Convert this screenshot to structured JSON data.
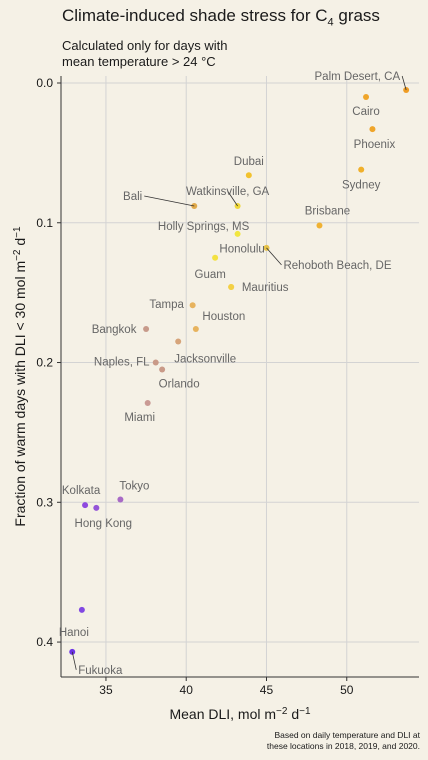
{
  "chart_data": {
    "type": "scatter",
    "title": "Climate-induced shade stress for C",
    "title_subscript": "4",
    "title_suffix": " grass",
    "subtitle_lines": [
      "Calculated only for days with",
      "mean temperature > 24 °C"
    ],
    "xlabel": "Mean DLI, mol m",
    "xlabel_sup1": "−2",
    "xlabel_mid": " d",
    "xlabel_sup2": "−1",
    "ylabel": "Fraction of warm days with DLI < 30 mol m",
    "ylabel_sup1": "−2",
    "ylabel_mid": " d",
    "ylabel_sup2": "−1",
    "caption_lines": [
      "Based on daily temperature and DLI at",
      "these locations in 2018, 2019, and 2020."
    ],
    "xlim": [
      32.2,
      54.5
    ],
    "ylim_reversed": [
      -0.005,
      0.425
    ],
    "x_ticks": [
      35,
      40,
      45,
      50
    ],
    "y_ticks": [
      0.0,
      0.1,
      0.2,
      0.3,
      0.4
    ],
    "y_tick_labels": [
      "0.0",
      "0.1",
      "0.2",
      "0.3",
      "0.4"
    ],
    "x_tick_labels": [
      "35",
      "40",
      "45",
      "50"
    ],
    "grid": true,
    "points": [
      {
        "name": "Palm Desert, CA",
        "x": 53.7,
        "y": 0.005,
        "color": "#ef9d25",
        "label_anchor": "end",
        "label_dx": -6,
        "label_dy": -10,
        "leader": true
      },
      {
        "name": "Cairo",
        "x": 51.2,
        "y": 0.01,
        "color": "#efa52a",
        "label_anchor": "middle",
        "label_dx": 0,
        "label_dy": 18,
        "leader": false
      },
      {
        "name": "Phoenix",
        "x": 51.6,
        "y": 0.033,
        "color": "#efa52a",
        "label_anchor": "middle",
        "label_dx": 2,
        "label_dy": 19,
        "leader": false
      },
      {
        "name": "Dubai",
        "x": 43.9,
        "y": 0.066,
        "color": "#f2c22e",
        "label_anchor": "middle",
        "label_dx": 0,
        "label_dy": -10,
        "leader": false
      },
      {
        "name": "Sydney",
        "x": 50.9,
        "y": 0.062,
        "color": "#f0b02b",
        "label_anchor": "middle",
        "label_dx": 0,
        "label_dy": 19,
        "leader": false
      },
      {
        "name": "Watkinsville, GA",
        "x": 43.2,
        "y": 0.088,
        "color": "#f0d83a",
        "label_anchor": "middle",
        "label_dx": -10,
        "label_dy": -11,
        "leader": true
      },
      {
        "name": "Bali",
        "x": 40.5,
        "y": 0.088,
        "color": "#e0a94a",
        "label_anchor": "end",
        "label_dx": -52,
        "label_dy": -6,
        "leader": true
      },
      {
        "name": "Holly Springs, MS",
        "x": 43.2,
        "y": 0.108,
        "color": "#f1e640",
        "label_anchor": "middle",
        "label_dx": -34,
        "label_dy": -4,
        "leader": false
      },
      {
        "name": "Brisbane",
        "x": 48.3,
        "y": 0.102,
        "color": "#f0b233",
        "label_anchor": "middle",
        "label_dx": 8,
        "label_dy": -11,
        "leader": false
      },
      {
        "name": "Honolulu",
        "x": 41.8,
        "y": 0.125,
        "color": "#f3e140",
        "label_anchor": "middle",
        "label_dx": 27,
        "label_dy": -5,
        "leader": false
      },
      {
        "name": "Rehoboth Beach, DE",
        "x": 45.0,
        "y": 0.118,
        "color": "#e6c248",
        "label_anchor": "start",
        "label_dx": 17,
        "label_dy": 21,
        "leader": true
      },
      {
        "name": "Guam",
        "x": 42.8,
        "y": 0.146,
        "color": "#f3d045",
        "label_anchor": "middle",
        "label_dx": -21,
        "label_dy": -9,
        "leader": false
      },
      {
        "name": "Mauritius",
        "x": 42.8,
        "y": 0.146,
        "color": "#f3d045",
        "label_anchor": "middle",
        "label_dx": 34,
        "label_dy": 4,
        "leader": false
      },
      {
        "name": "Tampa",
        "x": 40.4,
        "y": 0.159,
        "color": "#e7b35e",
        "label_anchor": "middle",
        "label_dx": -26,
        "label_dy": 3,
        "leader": false
      },
      {
        "name": "Houston",
        "x": 40.6,
        "y": 0.176,
        "color": "#e7b35e",
        "label_anchor": "middle",
        "label_dx": 28,
        "label_dy": -9,
        "leader": false
      },
      {
        "name": "Bangkok",
        "x": 37.5,
        "y": 0.176,
        "color": "#c79a8a",
        "label_anchor": "middle",
        "label_dx": -32,
        "label_dy": 4,
        "leader": false
      },
      {
        "name": "Jacksonville",
        "x": 39.5,
        "y": 0.185,
        "color": "#d6a47a",
        "label_anchor": "middle",
        "label_dx": 27,
        "label_dy": 21,
        "leader": false
      },
      {
        "name": "Naples, FL",
        "x": 38.1,
        "y": 0.2,
        "color": "#c99a88",
        "label_anchor": "middle",
        "label_dx": -34,
        "label_dy": 3,
        "leader": false
      },
      {
        "name": "Orlando",
        "x": 38.5,
        "y": 0.205,
        "color": "#c99a88",
        "label_anchor": "middle",
        "label_dx": 17,
        "label_dy": 18,
        "leader": false
      },
      {
        "name": "Miami",
        "x": 37.6,
        "y": 0.229,
        "color": "#c99a94",
        "label_anchor": "middle",
        "label_dx": -8,
        "label_dy": 18,
        "leader": false
      },
      {
        "name": "Tokyo",
        "x": 35.9,
        "y": 0.298,
        "color": "#a86ac6",
        "label_anchor": "middle",
        "label_dx": 14,
        "label_dy": -10,
        "leader": false
      },
      {
        "name": "Kolkata",
        "x": 33.7,
        "y": 0.302,
        "color": "#8f4ae0",
        "label_anchor": "middle",
        "label_dx": -4,
        "label_dy": -11,
        "leader": false
      },
      {
        "name": "Hong Kong",
        "x": 34.4,
        "y": 0.304,
        "color": "#9455d8",
        "label_anchor": "middle",
        "label_dx": 7,
        "label_dy": 19,
        "leader": false
      },
      {
        "name": "Hanoi",
        "x": 33.5,
        "y": 0.377,
        "color": "#8148e2",
        "label_anchor": "middle",
        "label_dx": -8,
        "label_dy": 26,
        "leader": false
      },
      {
        "name": "Fukuoka",
        "x": 32.9,
        "y": 0.407,
        "color": "#6c33e6",
        "label_anchor": "start",
        "label_dx": 6,
        "label_dy": 22,
        "leader": true
      }
    ]
  }
}
